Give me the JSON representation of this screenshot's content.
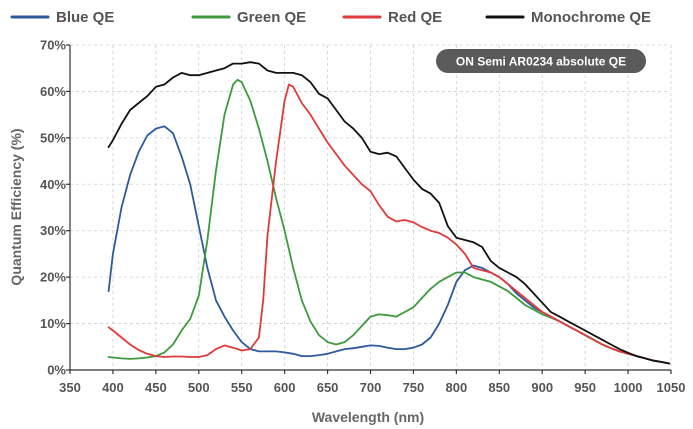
{
  "chart_data": {
    "type": "line",
    "title": "",
    "annotation": "ON Semi AR0234 absolute QE",
    "xlabel": "Wavelength (nm)",
    "ylabel": "Quantum Efficiency (%)",
    "xlim": [
      350,
      1050
    ],
    "ylim": [
      0,
      70
    ],
    "x_ticks": [
      350,
      400,
      450,
      500,
      550,
      600,
      650,
      700,
      750,
      800,
      850,
      900,
      950,
      1000,
      1050
    ],
    "y_ticks": [
      0,
      10,
      20,
      30,
      40,
      50,
      60,
      70
    ],
    "y_tick_labels": [
      "0%",
      "10%",
      "20%",
      "30%",
      "40%",
      "50%",
      "60%",
      "70%"
    ],
    "grid": true,
    "legend_position": "top",
    "series": [
      {
        "name": "Blue QE",
        "color": "#2e5a9c",
        "points": [
          [
            395,
            17
          ],
          [
            400,
            25
          ],
          [
            410,
            35
          ],
          [
            420,
            42
          ],
          [
            430,
            47
          ],
          [
            440,
            50.5
          ],
          [
            450,
            52
          ],
          [
            460,
            52.5
          ],
          [
            470,
            51
          ],
          [
            480,
            46
          ],
          [
            490,
            40
          ],
          [
            500,
            31
          ],
          [
            510,
            22
          ],
          [
            520,
            15
          ],
          [
            530,
            11.5
          ],
          [
            540,
            8.5
          ],
          [
            550,
            6
          ],
          [
            560,
            4.5
          ],
          [
            570,
            4
          ],
          [
            580,
            4
          ],
          [
            590,
            4
          ],
          [
            600,
            3.8
          ],
          [
            610,
            3.5
          ],
          [
            620,
            3
          ],
          [
            630,
            3
          ],
          [
            640,
            3.2
          ],
          [
            650,
            3.5
          ],
          [
            660,
            4
          ],
          [
            670,
            4.5
          ],
          [
            680,
            4.7
          ],
          [
            690,
            5
          ],
          [
            700,
            5.3
          ],
          [
            710,
            5.2
          ],
          [
            720,
            4.8
          ],
          [
            730,
            4.5
          ],
          [
            740,
            4.5
          ],
          [
            750,
            4.8
          ],
          [
            760,
            5.5
          ],
          [
            770,
            7
          ],
          [
            780,
            10
          ],
          [
            790,
            14
          ],
          [
            800,
            19
          ],
          [
            810,
            21.5
          ],
          [
            820,
            22.5
          ],
          [
            830,
            22
          ],
          [
            840,
            21
          ],
          [
            850,
            20
          ],
          [
            860,
            18.5
          ],
          [
            870,
            16.5
          ],
          [
            880,
            15
          ],
          [
            890,
            13.5
          ],
          [
            900,
            12.5
          ],
          [
            910,
            11.5
          ],
          [
            920,
            10.5
          ],
          [
            930,
            9.5
          ],
          [
            940,
            8.5
          ],
          [
            950,
            7.5
          ],
          [
            960,
            6.5
          ],
          [
            970,
            5.5
          ],
          [
            980,
            4.7
          ],
          [
            990,
            4
          ],
          [
            1000,
            3.5
          ],
          [
            1010,
            3
          ],
          [
            1020,
            2.5
          ],
          [
            1030,
            2
          ],
          [
            1040,
            1.7
          ],
          [
            1048,
            1.4
          ]
        ]
      },
      {
        "name": "Green QE",
        "color": "#3d9a3d",
        "points": [
          [
            395,
            2.8
          ],
          [
            400,
            2.7
          ],
          [
            410,
            2.5
          ],
          [
            420,
            2.4
          ],
          [
            430,
            2.5
          ],
          [
            440,
            2.7
          ],
          [
            450,
            3
          ],
          [
            460,
            3.8
          ],
          [
            470,
            5.5
          ],
          [
            480,
            8.5
          ],
          [
            490,
            11
          ],
          [
            500,
            16
          ],
          [
            510,
            28
          ],
          [
            520,
            43
          ],
          [
            530,
            55
          ],
          [
            540,
            61.5
          ],
          [
            545,
            62.5
          ],
          [
            550,
            62
          ],
          [
            560,
            58
          ],
          [
            570,
            52
          ],
          [
            580,
            45
          ],
          [
            590,
            37
          ],
          [
            600,
            30
          ],
          [
            610,
            22
          ],
          [
            620,
            15
          ],
          [
            630,
            10.5
          ],
          [
            640,
            7.5
          ],
          [
            650,
            6
          ],
          [
            660,
            5.5
          ],
          [
            670,
            6
          ],
          [
            680,
            7.5
          ],
          [
            690,
            9.5
          ],
          [
            700,
            11.5
          ],
          [
            710,
            12
          ],
          [
            720,
            11.8
          ],
          [
            730,
            11.5
          ],
          [
            740,
            12.5
          ],
          [
            750,
            13.5
          ],
          [
            760,
            15.5
          ],
          [
            770,
            17.5
          ],
          [
            780,
            19
          ],
          [
            790,
            20
          ],
          [
            800,
            21
          ],
          [
            810,
            21
          ],
          [
            820,
            20
          ],
          [
            830,
            19.5
          ],
          [
            840,
            19
          ],
          [
            850,
            18
          ],
          [
            860,
            17
          ],
          [
            870,
            15.5
          ],
          [
            880,
            14
          ],
          [
            890,
            13
          ],
          [
            900,
            12
          ],
          [
            910,
            11.3
          ],
          [
            920,
            10.5
          ],
          [
            930,
            9.5
          ],
          [
            940,
            8.5
          ],
          [
            950,
            7.5
          ],
          [
            960,
            6.5
          ],
          [
            970,
            5.5
          ],
          [
            980,
            4.7
          ],
          [
            990,
            4
          ],
          [
            1000,
            3.5
          ],
          [
            1010,
            3
          ],
          [
            1020,
            2.5
          ],
          [
            1030,
            2
          ],
          [
            1040,
            1.7
          ],
          [
            1048,
            1.4
          ]
        ]
      },
      {
        "name": "Red QE",
        "color": "#e03a3a",
        "points": [
          [
            395,
            9.2
          ],
          [
            400,
            8.5
          ],
          [
            410,
            7
          ],
          [
            420,
            5.5
          ],
          [
            430,
            4.3
          ],
          [
            440,
            3.5
          ],
          [
            450,
            3
          ],
          [
            460,
            2.8
          ],
          [
            470,
            2.9
          ],
          [
            480,
            2.9
          ],
          [
            490,
            2.8
          ],
          [
            500,
            2.8
          ],
          [
            510,
            3.2
          ],
          [
            520,
            4.5
          ],
          [
            530,
            5.3
          ],
          [
            540,
            4.8
          ],
          [
            550,
            4.2
          ],
          [
            560,
            4.5
          ],
          [
            570,
            7
          ],
          [
            575,
            15
          ],
          [
            580,
            29
          ],
          [
            590,
            45
          ],
          [
            600,
            58
          ],
          [
            605,
            61.5
          ],
          [
            610,
            61
          ],
          [
            620,
            57.5
          ],
          [
            630,
            55
          ],
          [
            640,
            52
          ],
          [
            650,
            49
          ],
          [
            660,
            46.5
          ],
          [
            670,
            44
          ],
          [
            680,
            42
          ],
          [
            690,
            40
          ],
          [
            700,
            38.5
          ],
          [
            710,
            35.5
          ],
          [
            720,
            33
          ],
          [
            730,
            32
          ],
          [
            740,
            32.3
          ],
          [
            750,
            31.8
          ],
          [
            760,
            30.8
          ],
          [
            770,
            30
          ],
          [
            780,
            29.5
          ],
          [
            790,
            28.5
          ],
          [
            800,
            27
          ],
          [
            810,
            25
          ],
          [
            820,
            22
          ],
          [
            830,
            21.5
          ],
          [
            840,
            21
          ],
          [
            850,
            20
          ],
          [
            860,
            18.5
          ],
          [
            870,
            17
          ],
          [
            880,
            15.5
          ],
          [
            890,
            14
          ],
          [
            900,
            12.5
          ],
          [
            910,
            11.5
          ],
          [
            920,
            10.5
          ],
          [
            930,
            9.5
          ],
          [
            940,
            8.5
          ],
          [
            950,
            7.5
          ],
          [
            960,
            6.5
          ],
          [
            970,
            5.5
          ],
          [
            980,
            4.7
          ],
          [
            990,
            4
          ],
          [
            1000,
            3.5
          ],
          [
            1010,
            3
          ],
          [
            1020,
            2.5
          ],
          [
            1030,
            2
          ],
          [
            1040,
            1.7
          ],
          [
            1048,
            1.4
          ]
        ]
      },
      {
        "name": "Monochrome QE",
        "color": "#111111",
        "points": [
          [
            395,
            48
          ],
          [
            400,
            49.5
          ],
          [
            410,
            53
          ],
          [
            420,
            56
          ],
          [
            430,
            57.5
          ],
          [
            440,
            59
          ],
          [
            450,
            61
          ],
          [
            460,
            61.5
          ],
          [
            470,
            63
          ],
          [
            480,
            64
          ],
          [
            490,
            63.5
          ],
          [
            500,
            63.5
          ],
          [
            510,
            64
          ],
          [
            520,
            64.5
          ],
          [
            530,
            65
          ],
          [
            540,
            66
          ],
          [
            550,
            66
          ],
          [
            560,
            66.3
          ],
          [
            570,
            66
          ],
          [
            580,
            64.5
          ],
          [
            590,
            64
          ],
          [
            600,
            64
          ],
          [
            610,
            64
          ],
          [
            620,
            63.5
          ],
          [
            630,
            62
          ],
          [
            640,
            59.5
          ],
          [
            650,
            58.5
          ],
          [
            660,
            56
          ],
          [
            670,
            53.5
          ],
          [
            680,
            52
          ],
          [
            690,
            50
          ],
          [
            700,
            47
          ],
          [
            710,
            46.5
          ],
          [
            720,
            46.8
          ],
          [
            730,
            46
          ],
          [
            740,
            43.5
          ],
          [
            750,
            41
          ],
          [
            760,
            39
          ],
          [
            770,
            38
          ],
          [
            780,
            36
          ],
          [
            790,
            31
          ],
          [
            800,
            28.5
          ],
          [
            810,
            28
          ],
          [
            820,
            27.5
          ],
          [
            830,
            26.5
          ],
          [
            840,
            23.5
          ],
          [
            850,
            22
          ],
          [
            860,
            21
          ],
          [
            870,
            20
          ],
          [
            880,
            18.5
          ],
          [
            890,
            16.5
          ],
          [
            900,
            14.5
          ],
          [
            910,
            12.5
          ],
          [
            920,
            11.5
          ],
          [
            930,
            10.5
          ],
          [
            940,
            9.5
          ],
          [
            950,
            8.5
          ],
          [
            960,
            7.5
          ],
          [
            970,
            6.5
          ],
          [
            980,
            5.5
          ],
          [
            990,
            4.5
          ],
          [
            1000,
            3.7
          ],
          [
            1010,
            3
          ],
          [
            1020,
            2.5
          ],
          [
            1030,
            2
          ],
          [
            1040,
            1.7
          ],
          [
            1048,
            1.4
          ]
        ]
      }
    ]
  }
}
